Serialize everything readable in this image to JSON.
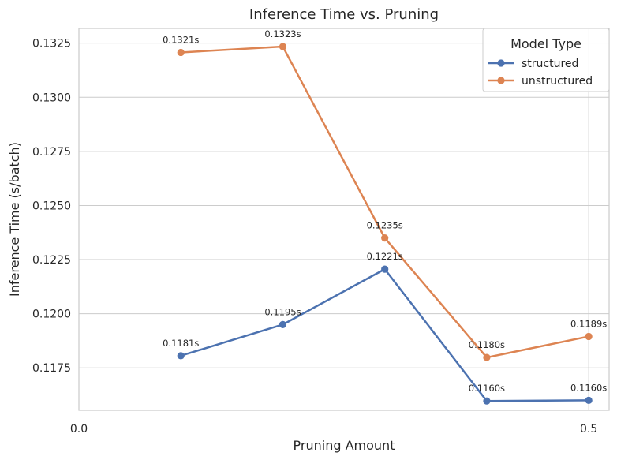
{
  "chart_data": {
    "type": "line",
    "title": "Inference Time vs. Pruning",
    "xlabel": "Pruning Amount",
    "ylabel": "Inference Time (s/batch)",
    "xlim": [
      0.0,
      0.52
    ],
    "ylim": [
      0.11554,
      0.13318
    ],
    "x_ticks": [
      0.0,
      0.5
    ],
    "x_tick_labels": [
      "0.0",
      "0.5"
    ],
    "y_ticks": [
      0.1175,
      0.12,
      0.1225,
      0.125,
      0.1275,
      0.13,
      0.1325
    ],
    "y_tick_labels": [
      "0.1175",
      "0.1200",
      "0.1225",
      "0.1250",
      "0.1275",
      "0.1300",
      "0.1325"
    ],
    "grid": true,
    "legend": {
      "title": "Model Type",
      "placement": "top-right"
    },
    "x": [
      0.1,
      0.2,
      0.3,
      0.4,
      0.5
    ],
    "series": [
      {
        "name": "structured",
        "color": "#4c72b0",
        "values": [
          0.11806,
          0.1195,
          0.12206,
          0.11597,
          0.116
        ],
        "labels": [
          "0.1181s",
          "0.1195s",
          "0.1221s",
          "0.1160s",
          "0.1160s"
        ]
      },
      {
        "name": "unstructured",
        "color": "#dd8452",
        "values": [
          0.13207,
          0.13234,
          0.1235,
          0.11798,
          0.11895
        ],
        "labels": [
          "0.1321s",
          "0.1323s",
          "0.1235s",
          "0.1180s",
          "0.1189s"
        ]
      }
    ]
  }
}
